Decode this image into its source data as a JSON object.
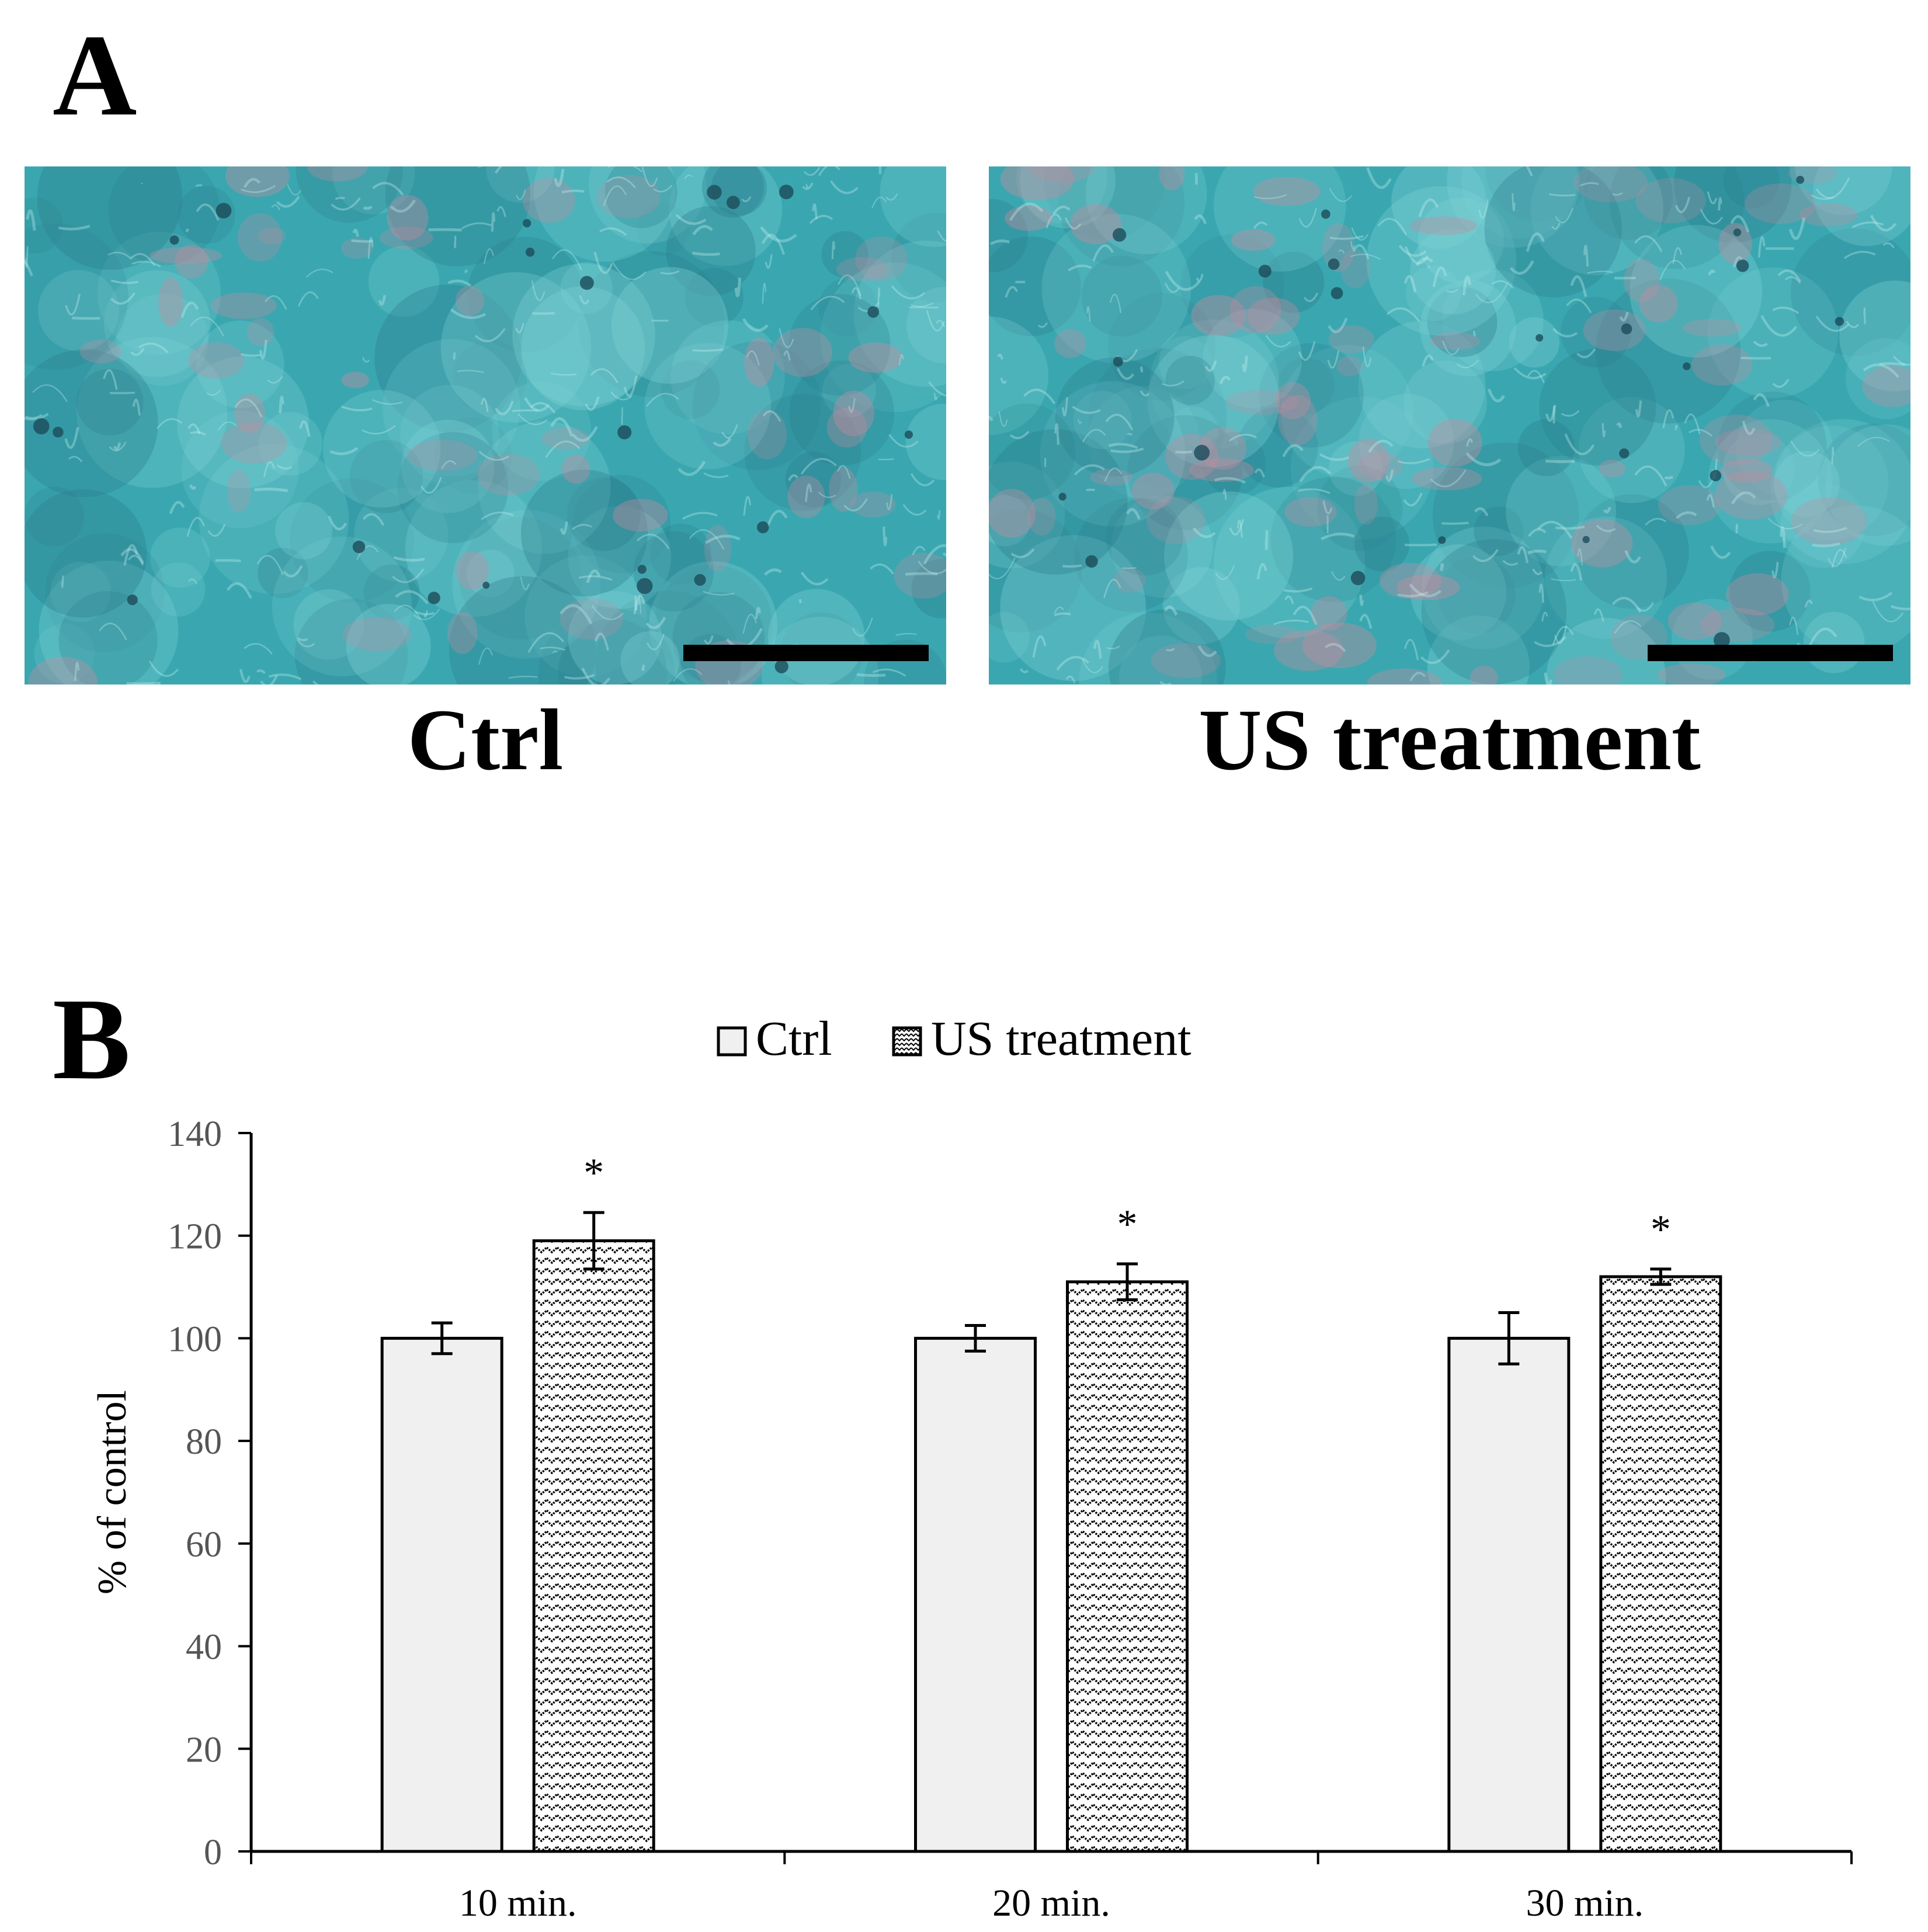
{
  "panel_a": {
    "letter": "A",
    "images": [
      {
        "caption": "Ctrl"
      },
      {
        "caption": "US treatment"
      }
    ],
    "colors": {
      "stain_base": "#3aa7b0",
      "stain_light": "#7fd2d6",
      "stain_dark": "#2a7d8c",
      "cytoplasm_pink": "#c98a9e",
      "scale_bar": "#000000"
    }
  },
  "panel_b": {
    "letter": "B"
  },
  "chart_data": {
    "type": "bar",
    "categories": [
      "10 min.",
      "20 min.",
      "30 min."
    ],
    "series": [
      {
        "name": "Ctrl",
        "values": [
          100,
          100,
          100
        ],
        "errors": [
          3,
          2.5,
          5
        ],
        "fill": "#f0f0f0",
        "pattern": "solid"
      },
      {
        "name": "US treatment",
        "values": [
          119,
          111,
          112
        ],
        "errors": [
          5.5,
          3.5,
          1.5
        ],
        "fill": "#ffffff",
        "pattern": "zigzag"
      }
    ],
    "significance": [
      "*",
      "*",
      "*"
    ],
    "ylabel": "% of control",
    "xlabel": "",
    "ylim": [
      0,
      140
    ],
    "yticks": [
      0,
      20,
      40,
      60,
      80,
      100,
      120,
      140
    ],
    "grid": false,
    "legend": "top-center"
  }
}
